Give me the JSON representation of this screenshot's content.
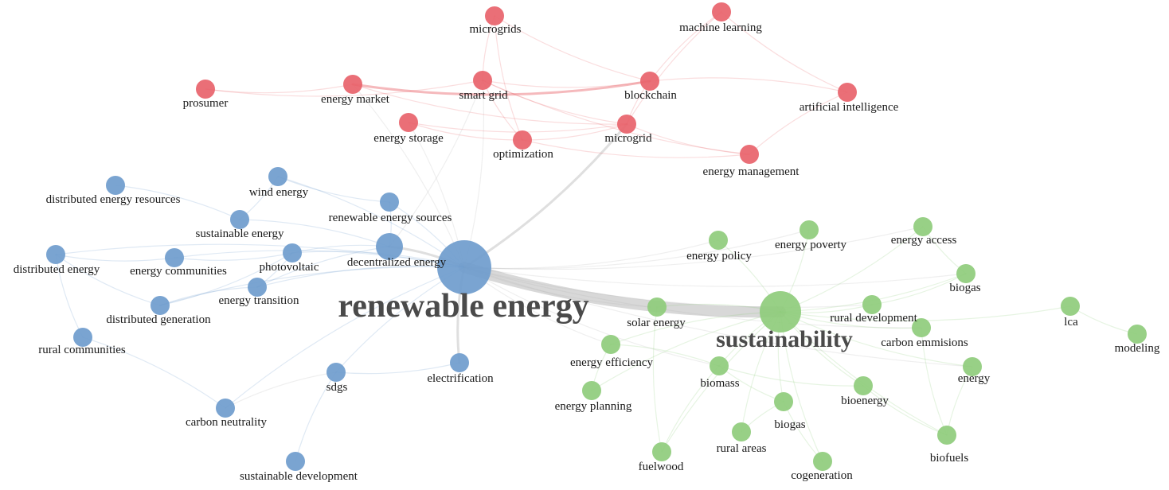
{
  "colors": {
    "red": "#e8636b",
    "blue": "#6f9ccd",
    "green": "#8fcc7c",
    "edge_gray": "#b8b8b8",
    "label_gray": "#4a4a4a"
  },
  "clusters": [
    {
      "id": "red",
      "color": "#e8636b"
    },
    {
      "id": "blue",
      "color": "#6f9ccd"
    },
    {
      "id": "green",
      "color": "#8fcc7c"
    }
  ],
  "nodes": [
    {
      "id": "microgrids",
      "label": "microgrids",
      "cluster": "red",
      "weight": 1
    },
    {
      "id": "machine_learning",
      "label": "machine learning",
      "cluster": "red",
      "weight": 1
    },
    {
      "id": "prosumer",
      "label": "prosumer",
      "cluster": "red",
      "weight": 1
    },
    {
      "id": "energy_market",
      "label": "energy  market",
      "cluster": "red",
      "weight": 1
    },
    {
      "id": "smart_grid",
      "label": "smart grid",
      "cluster": "red",
      "weight": 1
    },
    {
      "id": "blockchain",
      "label": "blockchain",
      "cluster": "red",
      "weight": 1
    },
    {
      "id": "artificial_intelligence",
      "label": "artificial intelligence",
      "cluster": "red",
      "weight": 1
    },
    {
      "id": "energy_storage",
      "label": "energy  storage",
      "cluster": "red",
      "weight": 1
    },
    {
      "id": "optimization",
      "label": "optimization",
      "cluster": "red",
      "weight": 1
    },
    {
      "id": "microgrid",
      "label": "microgrid",
      "cluster": "red",
      "weight": 1
    },
    {
      "id": "energy_management",
      "label": "energy management",
      "cluster": "red",
      "weight": 1
    },
    {
      "id": "distributed_energy_resources",
      "label": "distributed energy resources",
      "cluster": "blue",
      "weight": 1
    },
    {
      "id": "wind_energy",
      "label": "wind energy",
      "cluster": "blue",
      "weight": 1
    },
    {
      "id": "renewable_energy_sources",
      "label": "renewable energy sources",
      "cluster": "blue",
      "weight": 1
    },
    {
      "id": "sustainable_energy",
      "label": "sustainable energy",
      "cluster": "blue",
      "weight": 1
    },
    {
      "id": "distributed_energy",
      "label": "distributed energy",
      "cluster": "blue",
      "weight": 1
    },
    {
      "id": "energy_communities",
      "label": "energy  communities",
      "cluster": "blue",
      "weight": 1
    },
    {
      "id": "photovoltaic",
      "label": "photovoltaic",
      "cluster": "blue",
      "weight": 1
    },
    {
      "id": "decentralized_energy",
      "label": "decentralized energy",
      "cluster": "blue",
      "weight": 2
    },
    {
      "id": "renewable_energy",
      "label": "renewable energy",
      "cluster": "blue",
      "weight": 5
    },
    {
      "id": "energy_transition",
      "label": "energy transition",
      "cluster": "blue",
      "weight": 1
    },
    {
      "id": "distributed_generation",
      "label": "distributed generation",
      "cluster": "blue",
      "weight": 1
    },
    {
      "id": "rural_communities",
      "label": "rural communities",
      "cluster": "blue",
      "weight": 1
    },
    {
      "id": "sdgs",
      "label": "sdgs",
      "cluster": "blue",
      "weight": 1
    },
    {
      "id": "electrification",
      "label": "electrification",
      "cluster": "blue",
      "weight": 1
    },
    {
      "id": "carbon_neutrality",
      "label": "carbon neutrality",
      "cluster": "blue",
      "weight": 1
    },
    {
      "id": "sustainable_development",
      "label": "sustainable development",
      "cluster": "blue",
      "weight": 1
    },
    {
      "id": "energy_policy",
      "label": "energy policy",
      "cluster": "green",
      "weight": 1
    },
    {
      "id": "energy_poverty",
      "label": "energy poverty",
      "cluster": "green",
      "weight": 1
    },
    {
      "id": "energy_access",
      "label": "energy access",
      "cluster": "green",
      "weight": 1
    },
    {
      "id": "biogas_right",
      "label": "biogas",
      "cluster": "green",
      "weight": 1
    },
    {
      "id": "sustainability",
      "label": "sustainability",
      "cluster": "green",
      "weight": 4
    },
    {
      "id": "solar_energy",
      "label": "solar energy",
      "cluster": "green",
      "weight": 1
    },
    {
      "id": "rural_development",
      "label": "rural development",
      "cluster": "green",
      "weight": 1
    },
    {
      "id": "lca",
      "label": "lca",
      "cluster": "green",
      "weight": 1
    },
    {
      "id": "carbon_emmisions",
      "label": "carbon emmisions",
      "cluster": "green",
      "weight": 1
    },
    {
      "id": "modeling",
      "label": "modeling",
      "cluster": "green",
      "weight": 1
    },
    {
      "id": "energy_efficiency",
      "label": "energy efficiency",
      "cluster": "green",
      "weight": 1
    },
    {
      "id": "biomass",
      "label": "biomass",
      "cluster": "green",
      "weight": 1
    },
    {
      "id": "energy",
      "label": "energy",
      "cluster": "green",
      "weight": 1
    },
    {
      "id": "bioenergy",
      "label": "bioenergy",
      "cluster": "green",
      "weight": 1
    },
    {
      "id": "energy_planning",
      "label": "energy planning",
      "cluster": "green",
      "weight": 1
    },
    {
      "id": "biogas_bottom",
      "label": "biogas",
      "cluster": "green",
      "weight": 1
    },
    {
      "id": "rural_areas",
      "label": "rural areas",
      "cluster": "green",
      "weight": 1
    },
    {
      "id": "fuelwood",
      "label": "fuelwood",
      "cluster": "green",
      "weight": 1
    },
    {
      "id": "cogeneration",
      "label": "cogeneration",
      "cluster": "green",
      "weight": 1
    },
    {
      "id": "biofuels",
      "label": "biofuels",
      "cluster": "green",
      "weight": 1
    }
  ],
  "links": [
    [
      "renewable_energy",
      "sustainability",
      5
    ],
    [
      "renewable_energy",
      "decentralized_energy",
      2
    ],
    [
      "renewable_energy",
      "microgrid",
      2
    ],
    [
      "renewable_energy",
      "electrification",
      2
    ],
    [
      "renewable_energy",
      "photovoltaic",
      1
    ],
    [
      "renewable_energy",
      "energy_transition",
      1
    ],
    [
      "renewable_energy",
      "rural_development",
      1
    ],
    [
      "renewable_energy",
      "biogas_right",
      1
    ],
    [
      "renewable_energy",
      "energy_efficiency",
      1
    ],
    [
      "renewable_energy",
      "solar_energy",
      1
    ],
    [
      "renewable_energy",
      "carbon_neutrality",
      1
    ],
    [
      "renewable_energy",
      "energy_poverty",
      1
    ],
    [
      "renewable_energy",
      "energy_access",
      1
    ],
    [
      "renewable_energy",
      "smart_grid",
      1
    ],
    [
      "renewable_energy",
      "wind_energy",
      1
    ],
    [
      "renewable_energy",
      "distributed_energy",
      1
    ],
    [
      "renewable_energy",
      "energy_communities",
      1
    ],
    [
      "renewable_energy",
      "sdgs",
      1
    ],
    [
      "renewable_energy",
      "renewable_energy_sources",
      1
    ],
    [
      "renewable_energy",
      "energy_storage",
      1
    ],
    [
      "renewable_energy",
      "energy_market",
      1
    ],
    [
      "renewable_energy",
      "biomass",
      1
    ],
    [
      "renewable_energy",
      "carbon_emmisions",
      1
    ],
    [
      "renewable_energy",
      "energy_policy",
      1
    ],
    [
      "renewable_energy",
      "energy",
      1
    ],
    [
      "renewable_energy",
      "distributed_generation",
      1
    ],
    [
      "sdgs",
      "carbon_neutrality",
      1
    ],
    [
      "sdgs",
      "sustainable_development",
      1
    ],
    [
      "sdgs",
      "electrification",
      1
    ],
    [
      "energy_market",
      "blockchain",
      2
    ],
    [
      "smart_grid",
      "blockchain",
      1
    ],
    [
      "prosumer",
      "energy_market",
      1
    ],
    [
      "prosumer",
      "smart_grid",
      1
    ],
    [
      "microgrids",
      "smart_grid",
      1
    ],
    [
      "microgrids",
      "optimization",
      1
    ],
    [
      "microgrids",
      "blockchain",
      1
    ],
    [
      "machine_learning",
      "blockchain",
      1
    ],
    [
      "machine_learning",
      "artificial_intelligence",
      1
    ],
    [
      "machine_learning",
      "microgrid",
      1
    ],
    [
      "artificial_intelligence",
      "energy_management",
      1
    ],
    [
      "artificial_intelligence",
      "blockchain",
      1
    ],
    [
      "energy_storage",
      "microgrid",
      1
    ],
    [
      "energy_storage",
      "optimization",
      1
    ],
    [
      "optimization",
      "microgrid",
      1
    ],
    [
      "optimization",
      "energy_management",
      1
    ],
    [
      "microgrid",
      "energy_management",
      1
    ],
    [
      "smart_grid",
      "energy_management",
      1
    ],
    [
      "smart_grid",
      "optimization",
      1
    ],
    [
      "smart_grid",
      "microgrid",
      1
    ],
    [
      "energy_market",
      "microgrid",
      1
    ],
    [
      "blockchain",
      "microgrid",
      1
    ],
    [
      "sustainability",
      "energy_policy",
      1
    ],
    [
      "sustainability",
      "energy_poverty",
      1
    ],
    [
      "sustainability",
      "energy_access",
      1
    ],
    [
      "sustainability",
      "biogas_right",
      1
    ],
    [
      "sustainability",
      "solar_energy",
      1
    ],
    [
      "sustainability",
      "rural_development",
      1
    ],
    [
      "sustainability",
      "carbon_emmisions",
      1
    ],
    [
      "sustainability",
      "energy_efficiency",
      1
    ],
    [
      "sustainability",
      "biomass",
      1
    ],
    [
      "sustainability",
      "energy",
      1
    ],
    [
      "sustainability",
      "bioenergy",
      1
    ],
    [
      "sustainability",
      "biogas_bottom",
      1
    ],
    [
      "sustainability",
      "rural_areas",
      1
    ],
    [
      "sustainability",
      "fuelwood",
      1
    ],
    [
      "sustainability",
      "cogeneration",
      1
    ],
    [
      "sustainability",
      "biofuels",
      1
    ],
    [
      "sustainability",
      "lca",
      1
    ],
    [
      "sustainability",
      "energy_planning",
      1
    ],
    [
      "lca",
      "modeling",
      1
    ],
    [
      "biomass",
      "bioenergy",
      1
    ],
    [
      "biomass",
      "biogas_bottom",
      1
    ],
    [
      "biomass",
      "fuelwood",
      1
    ],
    [
      "biomass",
      "energy_efficiency",
      1
    ],
    [
      "bioenergy",
      "biofuels",
      1
    ],
    [
      "energy",
      "biofuels",
      1
    ],
    [
      "carbon_emmisions",
      "biofuels",
      1
    ],
    [
      "rural_development",
      "biogas_right",
      1
    ],
    [
      "energy_access",
      "biogas_right",
      1
    ],
    [
      "biogas_bottom",
      "cogeneration",
      1
    ],
    [
      "biogas_bottom",
      "rural_areas",
      1
    ],
    [
      "energy_efficiency",
      "energy_planning",
      1
    ],
    [
      "solar_energy",
      "fuelwood",
      1
    ],
    [
      "decentralized_energy",
      "photovoltaic",
      1
    ],
    [
      "decentralized_energy",
      "energy_transition",
      1
    ],
    [
      "decentralized_energy",
      "renewable_energy_sources",
      1
    ],
    [
      "decentralized_energy",
      "smart_grid",
      1
    ],
    [
      "decentralized_energy",
      "sustainable_energy",
      1
    ],
    [
      "distributed_energy",
      "energy_communities",
      1
    ],
    [
      "distributed_energy",
      "rural_communities",
      1
    ],
    [
      "distributed_energy",
      "distributed_generation",
      1
    ],
    [
      "sustainable_energy",
      "wind_energy",
      1
    ],
    [
      "sustainable_energy",
      "distributed_energy_resources",
      1
    ],
    [
      "energy_transition",
      "distributed_generation",
      1
    ],
    [
      "energy_transition",
      "photovoltaic",
      1
    ],
    [
      "energy_communities",
      "photovoltaic",
      1
    ],
    [
      "carbon_neutrality",
      "rural_communities",
      1
    ],
    [
      "wind_energy",
      "renewable_energy_sources",
      1
    ],
    [
      "distributed_generation",
      "photovoltaic",
      1
    ]
  ]
}
